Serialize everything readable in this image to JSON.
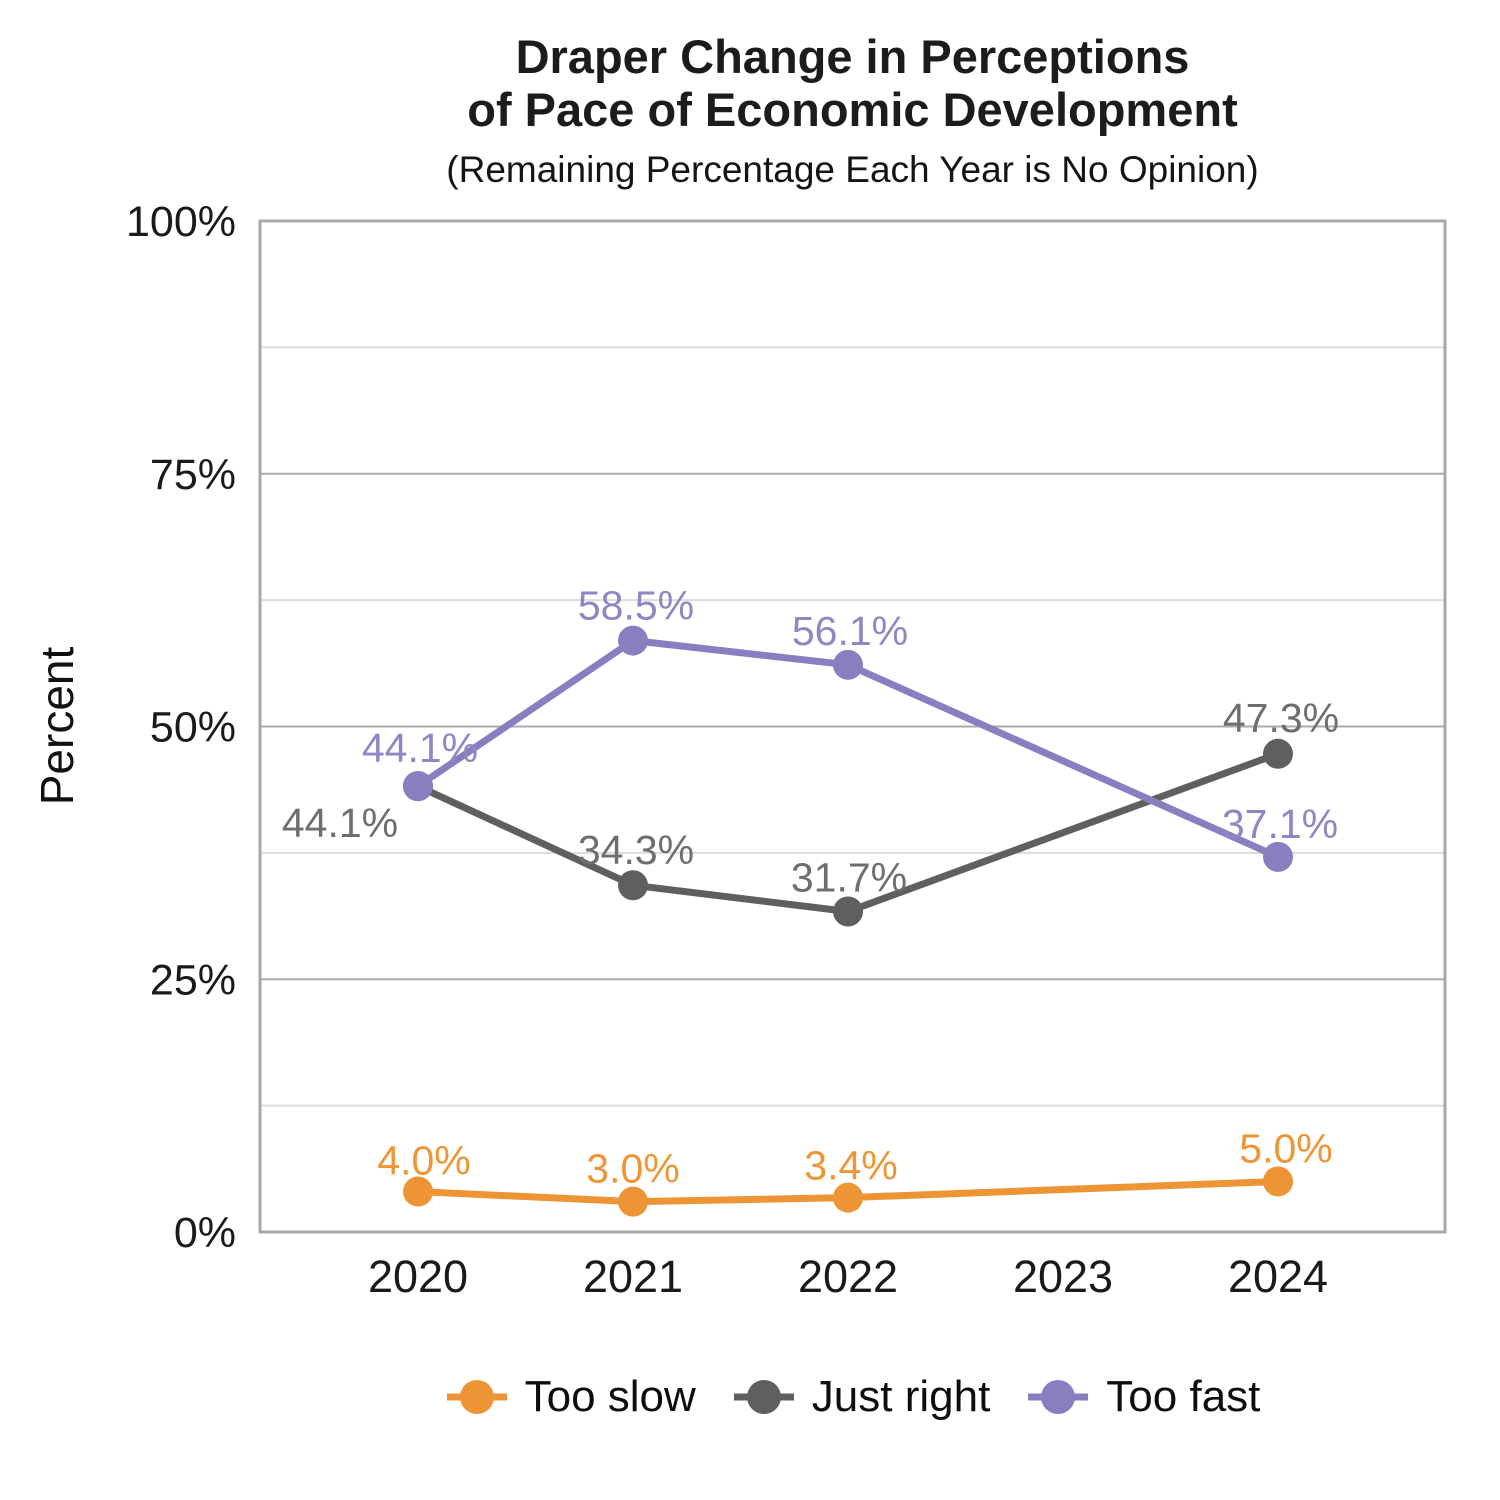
{
  "chart_data": {
    "type": "line",
    "title": "Draper Change in Perceptions of Pace of Economic Development",
    "title_lines": [
      "Draper Change in Perceptions",
      "of Pace of Economic Development"
    ],
    "subtitle": "(Remaining Percentage Each Year is No Opinion)",
    "ylabel": "Percent",
    "xlabel": "",
    "categories": [
      "2020",
      "2021",
      "2022",
      "2023",
      "2024"
    ],
    "ylim": [
      0,
      100
    ],
    "ytick_values": [
      0,
      25,
      50,
      75,
      100
    ],
    "ytick_labels": [
      "0%",
      "25%",
      "50%",
      "75%",
      "100%"
    ],
    "minor_grid_values": [
      12.5,
      37.5,
      62.5,
      87.5
    ],
    "grid": "horizontal",
    "legend_position": "bottom",
    "colors": {
      "major_gridline": "#ababab",
      "minor_gridline": "#dcdcdc",
      "plot_border": "#a8a8a8",
      "axis_text": "#1a1a1a"
    },
    "series": [
      {
        "name": "Too slow",
        "color": "#ED9435",
        "label_color": "#EE9636",
        "values": [
          4.0,
          3.0,
          3.4,
          null,
          5.0
        ],
        "point_labels": [
          "4.0%",
          "3.0%",
          "3.4%",
          null,
          "5.0%"
        ],
        "label_offsets": [
          [
            6,
            -17
          ],
          [
            0,
            -19
          ],
          [
            3,
            -18
          ],
          null,
          [
            8,
            -19
          ]
        ]
      },
      {
        "name": "Just right",
        "color": "#5F5F5F",
        "label_color": "#6E6E6E",
        "values": [
          44.1,
          34.3,
          31.7,
          null,
          47.3
        ],
        "point_labels": [
          "44.1%",
          "34.3%",
          "31.7%",
          null,
          "47.3%"
        ],
        "label_offsets": [
          [
            -78,
            51
          ],
          [
            3,
            -21
          ],
          [
            1,
            -20
          ],
          null,
          [
            3,
            -22
          ]
        ]
      },
      {
        "name": "Too fast",
        "color": "#8B7EC0",
        "label_color": "#9186C4",
        "values": [
          44.1,
          58.5,
          56.1,
          null,
          37.1
        ],
        "point_labels": [
          "44.1%",
          "58.5%",
          "56.1%",
          null,
          "37.1%"
        ],
        "label_offsets": [
          [
            2,
            -24
          ],
          [
            3,
            -21
          ],
          [
            2,
            -20
          ],
          null,
          [
            2,
            -19
          ]
        ]
      }
    ]
  }
}
